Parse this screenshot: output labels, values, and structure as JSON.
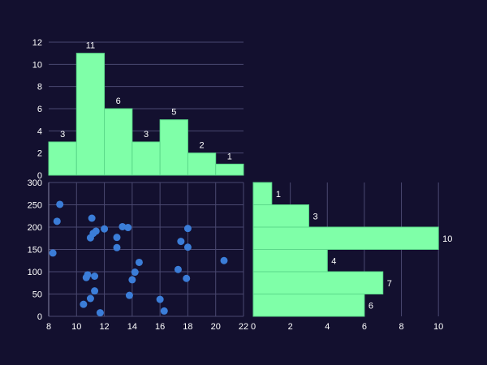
{
  "colors": {
    "background": "#13102f",
    "bar_fill": "#7fffa8",
    "bar_stroke": "#5bd98a",
    "point_fill": "#3b7dd8",
    "grid": "#4a4870",
    "text": "#ffffff"
  },
  "chart_data": [
    {
      "type": "bar",
      "role": "top-marginal-histogram-of-x",
      "bins": [
        [
          8,
          10
        ],
        [
          10,
          12
        ],
        [
          12,
          14
        ],
        [
          14,
          16
        ],
        [
          16,
          18
        ],
        [
          18,
          20
        ],
        [
          20,
          22
        ]
      ],
      "values": [
        3,
        11,
        6,
        3,
        5,
        2,
        1
      ],
      "data_labels": [
        "3",
        "11",
        "6",
        "3",
        "5",
        "2",
        "1"
      ],
      "xlim": [
        8,
        22
      ],
      "ylim": [
        0,
        12
      ],
      "yticks": [
        0,
        2,
        4,
        6,
        8,
        10,
        12
      ],
      "grid": true
    },
    {
      "type": "scatter",
      "role": "main-scatter",
      "xlim": [
        8,
        22
      ],
      "ylim": [
        0,
        300
      ],
      "xticks": [
        8,
        10,
        12,
        14,
        16,
        18,
        20,
        22
      ],
      "yticks": [
        0,
        50,
        100,
        150,
        200,
        250,
        300
      ],
      "grid": true,
      "points": [
        {
          "x": 8.3,
          "y": 142
        },
        {
          "x": 8.6,
          "y": 213
        },
        {
          "x": 8.8,
          "y": 251
        },
        {
          "x": 10.5,
          "y": 27
        },
        {
          "x": 10.7,
          "y": 87
        },
        {
          "x": 10.8,
          "y": 93
        },
        {
          "x": 11.0,
          "y": 40
        },
        {
          "x": 11.0,
          "y": 176
        },
        {
          "x": 11.1,
          "y": 220
        },
        {
          "x": 11.2,
          "y": 186
        },
        {
          "x": 11.3,
          "y": 57
        },
        {
          "x": 11.3,
          "y": 90
        },
        {
          "x": 11.4,
          "y": 191
        },
        {
          "x": 11.7,
          "y": 8
        },
        {
          "x": 12.0,
          "y": 196
        },
        {
          "x": 12.9,
          "y": 154
        },
        {
          "x": 12.9,
          "y": 177
        },
        {
          "x": 13.3,
          "y": 201
        },
        {
          "x": 13.7,
          "y": 199
        },
        {
          "x": 13.8,
          "y": 47
        },
        {
          "x": 14.0,
          "y": 82
        },
        {
          "x": 14.2,
          "y": 99
        },
        {
          "x": 14.5,
          "y": 121
        },
        {
          "x": 16.0,
          "y": 38
        },
        {
          "x": 16.3,
          "y": 12
        },
        {
          "x": 17.3,
          "y": 105
        },
        {
          "x": 17.5,
          "y": 168
        },
        {
          "x": 17.9,
          "y": 85
        },
        {
          "x": 18.0,
          "y": 155
        },
        {
          "x": 18.0,
          "y": 197
        },
        {
          "x": 20.6,
          "y": 125
        }
      ]
    },
    {
      "type": "bar",
      "role": "right-marginal-histogram-of-y",
      "orientation": "horizontal",
      "bins": [
        [
          250,
          300
        ],
        [
          200,
          250
        ],
        [
          150,
          200
        ],
        [
          100,
          150
        ],
        [
          50,
          100
        ],
        [
          0,
          50
        ]
      ],
      "values": [
        1,
        3,
        10,
        4,
        7,
        6
      ],
      "data_labels": [
        "1",
        "3",
        "10",
        "4",
        "7",
        "6"
      ],
      "xlim": [
        0,
        11
      ],
      "xticks": [
        0,
        2,
        4,
        6,
        8,
        10
      ],
      "ylim": [
        0,
        300
      ],
      "grid": true
    }
  ]
}
